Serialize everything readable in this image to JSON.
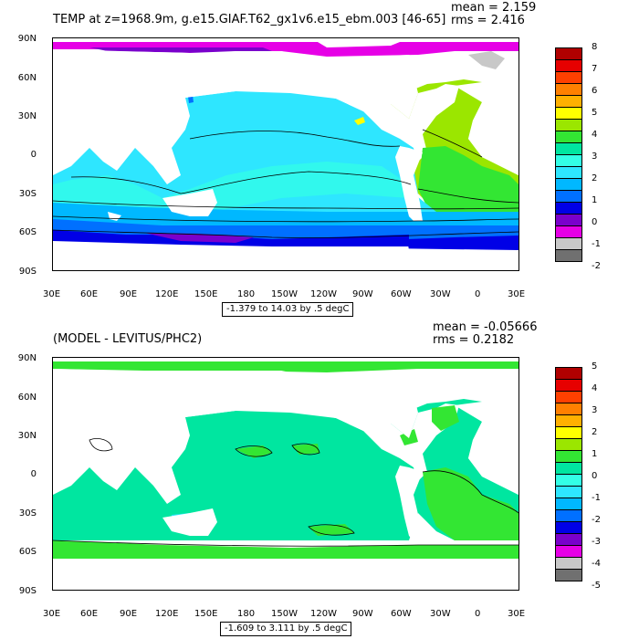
{
  "panels": [
    {
      "title": "TEMP at z=1968.9m, g.e15.GIAF.T62_gx1v6.e15_ebm.003 [46-65]",
      "mean": "mean = 2.159",
      "rms": "rms = 2.416",
      "range_label": "-1.379 to 14.03 by .5 degC",
      "lat_labels": [
        "90N",
        "60N",
        "30N",
        "0",
        "30S",
        "60S",
        "90S"
      ],
      "lon_labels": [
        "30E",
        "60E",
        "90E",
        "120E",
        "150E",
        "180",
        "150W",
        "120W",
        "90W",
        "60W",
        "30W",
        "0",
        "30E"
      ],
      "colorbar": {
        "labels": [
          "8",
          "7",
          "6",
          "5",
          "4",
          "3",
          "2",
          "1",
          "0",
          "-1",
          "-2"
        ],
        "colors": [
          "#b00000",
          "#e60000",
          "#ff4000",
          "#ff8000",
          "#ffb000",
          "#ffff00",
          "#9be600",
          "#33e633",
          "#00e6a0",
          "#33ffe6",
          "#2ee6ff",
          "#00b8ff",
          "#0070ff",
          "#0000e6",
          "#7a00cc",
          "#e600e6",
          "#c8c8c8",
          "#707070"
        ]
      }
    },
    {
      "title": "(MODEL - LEVITUS/PHC2)",
      "mean": "mean = -0.05666",
      "rms": "rms = 0.2182",
      "range_label": "-1.609 to 3.111 by .5 degC",
      "lat_labels": [
        "90N",
        "60N",
        "30N",
        "0",
        "30S",
        "60S",
        "90S"
      ],
      "lon_labels": [
        "30E",
        "60E",
        "90E",
        "120E",
        "150E",
        "180",
        "150W",
        "120W",
        "90W",
        "60W",
        "30W",
        "0",
        "30E"
      ],
      "colorbar": {
        "labels": [
          "5",
          "4",
          "3",
          "2",
          "1",
          "0",
          "-1",
          "-2",
          "-3",
          "-4",
          "-5"
        ],
        "colors": [
          "#b00000",
          "#e60000",
          "#ff4000",
          "#ff8000",
          "#ffb000",
          "#ffff00",
          "#9be600",
          "#33e633",
          "#00e6a0",
          "#33ffe6",
          "#2ee6ff",
          "#00b8ff",
          "#0070ff",
          "#0000e6",
          "#7a00cc",
          "#e600e6",
          "#c8c8c8",
          "#707070"
        ]
      }
    }
  ]
}
